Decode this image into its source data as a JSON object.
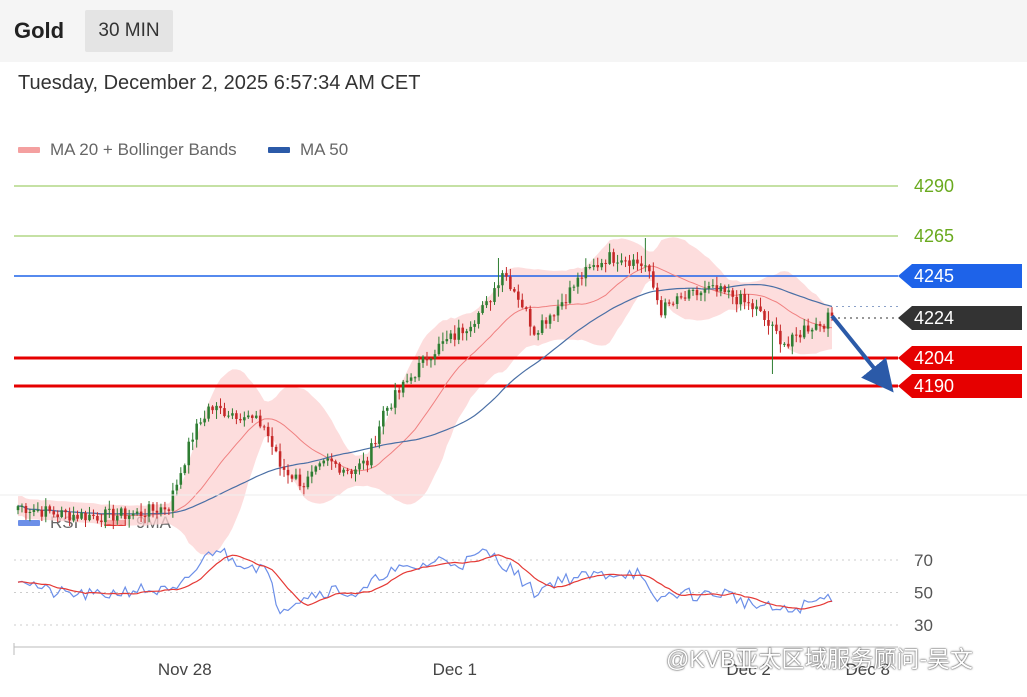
{
  "header": {
    "asset": "Gold",
    "timeframe": "30 MIN"
  },
  "timestamp": "Tuesday, December 2, 2025 6:57:34 AM CET",
  "legend_main": [
    {
      "label": "MA 20 + Bollinger Bands",
      "color": "#f08080"
    },
    {
      "label": "MA 50",
      "color": "#2b5aa8"
    }
  ],
  "legend_rsi": [
    {
      "label": "RSI",
      "color": "#6c8fe8"
    },
    {
      "label": "9MA",
      "color": "#e53935"
    }
  ],
  "watermark": "@KVB亚太区域服务顾问-吴文",
  "colors": {
    "bull": "#2e7d32",
    "bear": "#c62828",
    "band": "#fcd2d2",
    "ma20": "#f08080",
    "ma50": "#4a6fa5",
    "rsi": "#6c8fe8",
    "rsi_ma": "#e53935",
    "green_level": "#8bc34a",
    "blue_level": "#1e63e9",
    "red_level": "#e60000",
    "current": "#333333",
    "arrow": "#2b5aa8"
  },
  "chart_data": [
    {
      "type": "candlestick",
      "title": "Gold",
      "ylim": [
        4085,
        4300
      ],
      "x_labels": [
        {
          "label": "Nov 28",
          "bar": 42
        },
        {
          "label": "Dec 1",
          "bar": 110
        },
        {
          "label": "Dec 2",
          "bar": 184
        },
        {
          "label": "Dec 8",
          "bar": 214
        }
      ],
      "levels": [
        {
          "label": "4290",
          "value": 4290,
          "style": "green-text"
        },
        {
          "label": "4265",
          "value": 4265,
          "style": "green-text"
        },
        {
          "label": "4245",
          "value": 4245,
          "style": "blue-tag"
        },
        {
          "label": "4224",
          "value": 4224,
          "style": "current-tag"
        },
        {
          "label": "4204",
          "value": 4204,
          "style": "red-tag"
        },
        {
          "label": "4190",
          "value": 4190,
          "style": "red-tag"
        }
      ],
      "projection": {
        "from": [
          205,
          4225
        ],
        "to": [
          218,
          4190
        ]
      },
      "anchors": [
        [
          0,
          4130
        ],
        [
          10,
          4126
        ],
        [
          20,
          4125
        ],
        [
          30,
          4126
        ],
        [
          38,
          4130
        ],
        [
          44,
          4165
        ],
        [
          48,
          4179
        ],
        [
          56,
          4176
        ],
        [
          62,
          4170
        ],
        [
          66,
          4150
        ],
        [
          72,
          4141
        ],
        [
          78,
          4152
        ],
        [
          84,
          4148
        ],
        [
          88,
          4152
        ],
        [
          92,
          4177
        ],
        [
          98,
          4192
        ],
        [
          104,
          4207
        ],
        [
          110,
          4215
        ],
        [
          118,
          4230
        ],
        [
          122,
          4248
        ],
        [
          126,
          4235
        ],
        [
          130,
          4218
        ],
        [
          136,
          4230
        ],
        [
          142,
          4245
        ],
        [
          148,
          4254
        ],
        [
          152,
          4255
        ],
        [
          158,
          4250
        ],
        [
          162,
          4228
        ],
        [
          168,
          4234
        ],
        [
          174,
          4238
        ],
        [
          180,
          4235
        ],
        [
          186,
          4228
        ],
        [
          190,
          4218
        ],
        [
          194,
          4210
        ],
        [
          198,
          4219
        ],
        [
          203,
          4222
        ],
        [
          205,
          4225
        ]
      ],
      "wick_spikes": [
        {
          "bar": 158,
          "high": 4264
        },
        {
          "bar": 190,
          "low": 4196
        },
        {
          "bar": 121,
          "high": 4254
        }
      ]
    },
    {
      "type": "line",
      "title": "RSI",
      "ylim": [
        25,
        85
      ],
      "y_ticks": [
        70,
        50,
        30
      ],
      "anchors": [
        [
          0,
          60
        ],
        [
          8,
          50
        ],
        [
          20,
          48
        ],
        [
          30,
          52
        ],
        [
          40,
          50
        ],
        [
          46,
          68
        ],
        [
          50,
          78
        ],
        [
          54,
          70
        ],
        [
          62,
          65
        ],
        [
          66,
          40
        ],
        [
          72,
          48
        ],
        [
          80,
          52
        ],
        [
          86,
          48
        ],
        [
          92,
          62
        ],
        [
          100,
          65
        ],
        [
          106,
          70
        ],
        [
          112,
          68
        ],
        [
          118,
          75
        ],
        [
          124,
          65
        ],
        [
          130,
          50
        ],
        [
          136,
          58
        ],
        [
          144,
          60
        ],
        [
          150,
          62
        ],
        [
          156,
          62
        ],
        [
          160,
          45
        ],
        [
          166,
          50
        ],
        [
          172,
          48
        ],
        [
          178,
          50
        ],
        [
          184,
          43
        ],
        [
          190,
          40
        ],
        [
          194,
          38
        ],
        [
          198,
          42
        ],
        [
          205,
          48
        ]
      ]
    }
  ]
}
